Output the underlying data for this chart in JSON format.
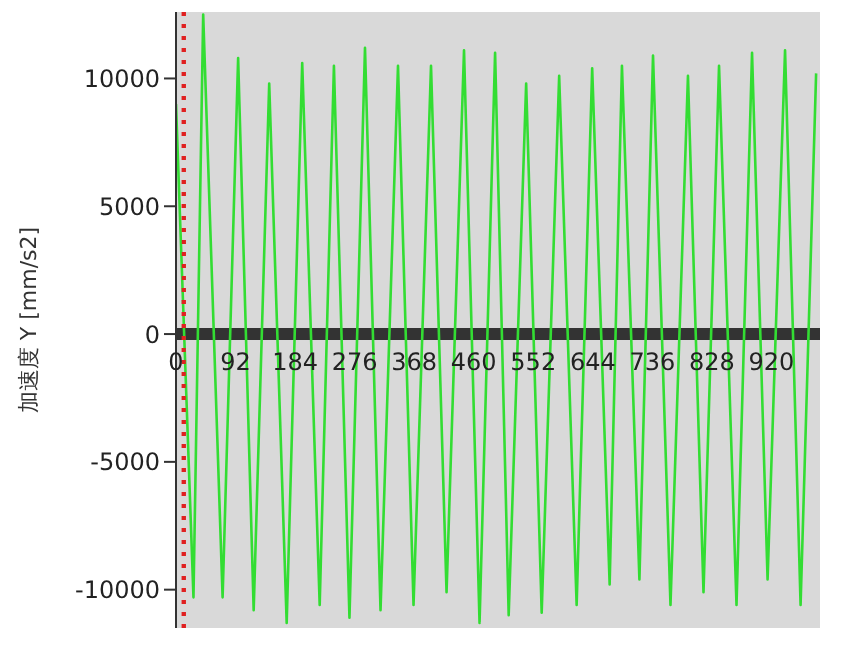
{
  "chart_data": {
    "type": "line",
    "ylabel": "加速度 Y [mm/s2]",
    "x": [
      0,
      27,
      42,
      72,
      96,
      120,
      144,
      171,
      195,
      222,
      244,
      268,
      292,
      316,
      343,
      367,
      394,
      418,
      445,
      469,
      493,
      514,
      541,
      565,
      592,
      619,
      643,
      670,
      689,
      716,
      737,
      764,
      791,
      815,
      839,
      866,
      890,
      914,
      941,
      965,
      989
    ],
    "series": [
      {
        "color": "#33dd33",
        "values": [
          9000,
          -10300,
          12500,
          -10300,
          10800,
          -10800,
          9800,
          -11300,
          10600,
          -10600,
          10500,
          -11100,
          11200,
          -10800,
          10500,
          -10600,
          10500,
          -10100,
          11100,
          -11300,
          11000,
          -11000,
          9800,
          -10900,
          10100,
          -10600,
          10400,
          -9800,
          10500,
          -9600,
          10900,
          -10600,
          10100,
          -10100,
          10500,
          -10600,
          11000,
          -9600,
          11100,
          -10600,
          10200
        ]
      }
    ],
    "xlim": [
      0,
      995
    ],
    "xticks": [
      0,
      92,
      184,
      276,
      368,
      460,
      552,
      644,
      736,
      828,
      920
    ],
    "ylim": [
      -11500,
      12600
    ],
    "yticks": [
      -10000,
      -5000,
      0,
      5000,
      10000
    ],
    "grid": false,
    "legend": false,
    "marker": "none",
    "line_style": "solid",
    "ref_lines": [
      {
        "axis": "x",
        "value": 12,
        "color": "#e02020",
        "line_style": "dotted"
      }
    ]
  }
}
